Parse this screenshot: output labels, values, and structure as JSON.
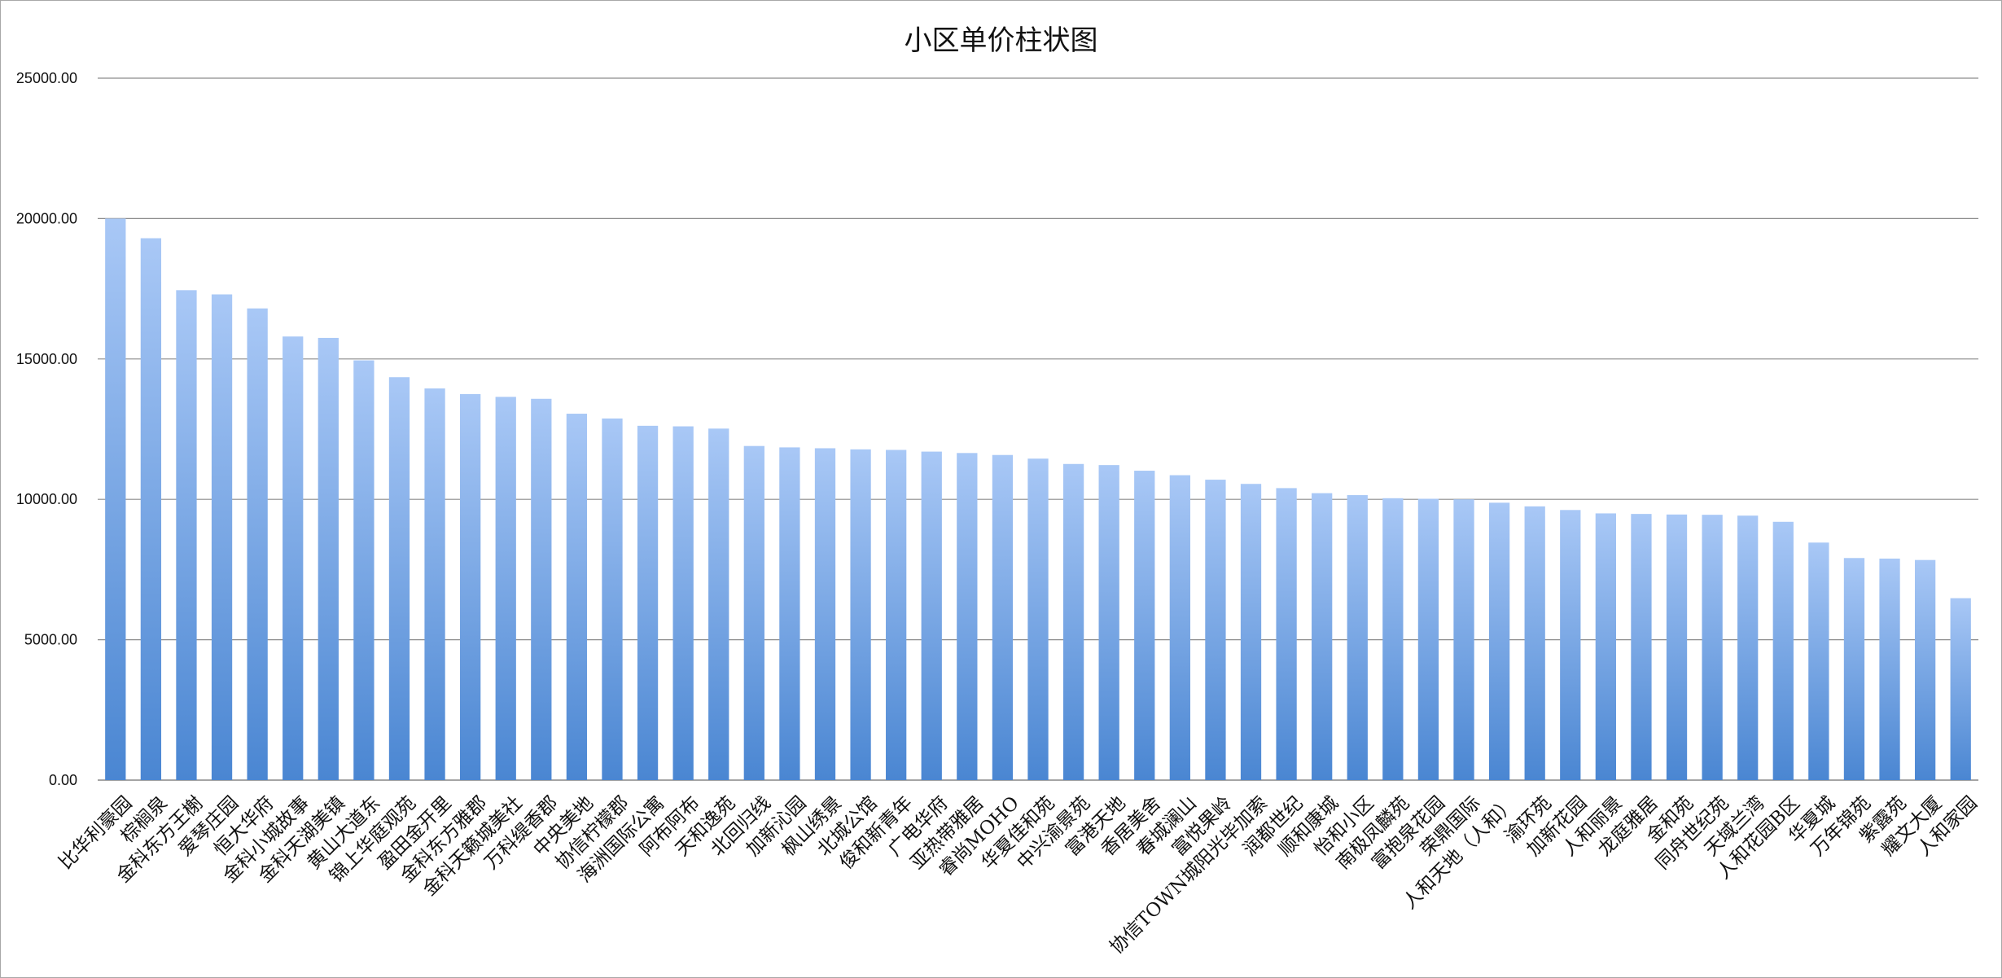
{
  "chart_data": {
    "type": "bar",
    "title": "小区单价柱状图",
    "xlabel": "",
    "ylabel": "",
    "ylim": [
      0,
      25000
    ],
    "yticks": [
      "0.00",
      "5000.00",
      "10000.00",
      "15000.00",
      "20000.00",
      "25000.00"
    ],
    "grid": true,
    "legend": "none",
    "colors": {
      "bar_top": "#a9c8f6",
      "bar_bottom": "#4a86d2",
      "grid": "#8c8c8c"
    },
    "categories": [
      "比华利豪园",
      "棕榈泉",
      "金科东方王榭",
      "爱琴庄园",
      "恒大华府",
      "金科小城故事",
      "金科天湖美镇",
      "黄山大道东",
      "锦上华庭观苑",
      "盈田金开里",
      "金科东方雅郡",
      "金科天籁城美社",
      "万科缇香郡",
      "中央美地",
      "协信柠檬郡",
      "海洲国际公寓",
      "阿布阿布",
      "天和逸苑",
      "北回归线",
      "加新沁园",
      "枫山绣景",
      "北城公馆",
      "俊和新青年",
      "广电华府",
      "亚热带雅居",
      "睿尚MOHO",
      "华夏佳和苑",
      "中兴渝景苑",
      "富港天地",
      "香居美舍",
      "春城澜山",
      "富悦果岭",
      "协信TOWN城阳光毕加索",
      "润都世纪",
      "顺和康城",
      "怡和小区",
      "南极凤麟苑",
      "富抱泉花园",
      "荣鼎国际",
      "人和天地（人和）",
      "渝环苑",
      "加新花园",
      "人和丽景",
      "龙庭雅居",
      "金和苑",
      "同舟世纪苑",
      "天域兰湾",
      "人和花园B区",
      "华夏城",
      "万年锦苑",
      "紫露苑",
      "耀文大厦",
      "人和家园"
    ],
    "values": [
      20000,
      19300,
      17450,
      17300,
      16800,
      15800,
      15750,
      14950,
      14350,
      13950,
      13750,
      13650,
      13580,
      13050,
      12880,
      12620,
      12600,
      12520,
      11900,
      11850,
      11820,
      11780,
      11760,
      11700,
      11650,
      11580,
      11450,
      11260,
      11220,
      11020,
      10860,
      10700,
      10550,
      10400,
      10220,
      10150,
      10040,
      10020,
      10000,
      9880,
      9750,
      9620,
      9500,
      9480,
      9460,
      9450,
      9420,
      9200,
      8460,
      7910,
      7890,
      7840,
      6480
    ]
  }
}
